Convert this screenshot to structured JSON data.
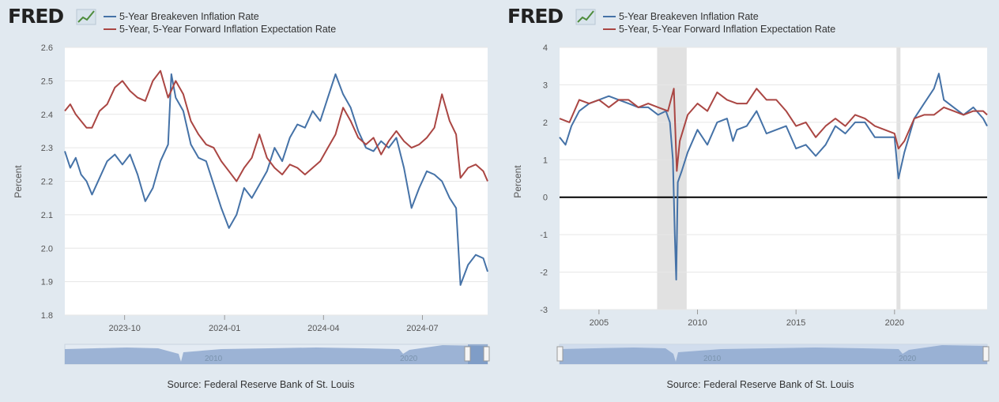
{
  "brand": {
    "logo": "FRED",
    "logo_icon": "fred-chart-icon"
  },
  "colors": {
    "blue": "#4572a7",
    "red": "#aa4643",
    "background": "#e1e9f0",
    "recession": "#e1e1e1",
    "navigator": "#8fa9cf"
  },
  "charts": [
    {
      "legend": [
        "5-Year Breakeven Inflation Rate",
        "5-Year, 5-Year Forward Inflation Expectation Rate"
      ],
      "ylabel": "Percent",
      "yticks": [
        "2.6",
        "2.5",
        "2.4",
        "2.3",
        "2.2",
        "2.1",
        "2.0",
        "1.9",
        "1.8"
      ],
      "xticks": [
        "2023-10",
        "2024-01",
        "2024-04",
        "2024-07"
      ],
      "navigator_labels": [
        "2010",
        "2020"
      ],
      "source": "Source: Federal Reserve Bank of St. Louis"
    },
    {
      "legend": [
        "5-Year Breakeven Inflation Rate",
        "5-Year, 5-Year Forward Inflation Expectation Rate"
      ],
      "ylabel": "Percent",
      "yticks": [
        "4",
        "3",
        "2",
        "1",
        "0",
        "-1",
        "-2",
        "-3"
      ],
      "xticks": [
        "2005",
        "2010",
        "2015",
        "2020"
      ],
      "navigator_labels": [
        "2010",
        "2020"
      ],
      "source": "Source: Federal Reserve Bank of St. Louis"
    }
  ],
  "chart_data": [
    {
      "type": "line",
      "x_type": "date",
      "xlim": [
        "2023-08-07",
        "2024-08-30"
      ],
      "ylim": [
        1.8,
        2.6
      ],
      "grid": true,
      "legend_position": "top-left",
      "series": [
        {
          "name": "5-Year Breakeven Inflation Rate",
          "color": "#4572a7",
          "points": [
            [
              "2023-08-07",
              2.29
            ],
            [
              "2023-08-12",
              2.24
            ],
            [
              "2023-08-17",
              2.27
            ],
            [
              "2023-08-22",
              2.22
            ],
            [
              "2023-08-27",
              2.2
            ],
            [
              "2023-09-01",
              2.16
            ],
            [
              "2023-09-08",
              2.21
            ],
            [
              "2023-09-15",
              2.26
            ],
            [
              "2023-09-22",
              2.28
            ],
            [
              "2023-09-29",
              2.25
            ],
            [
              "2023-10-06",
              2.28
            ],
            [
              "2023-10-13",
              2.22
            ],
            [
              "2023-10-20",
              2.14
            ],
            [
              "2023-10-27",
              2.18
            ],
            [
              "2023-11-03",
              2.26
            ],
            [
              "2023-11-10",
              2.31
            ],
            [
              "2023-11-13",
              2.52
            ],
            [
              "2023-11-17",
              2.45
            ],
            [
              "2023-11-24",
              2.41
            ],
            [
              "2023-12-01",
              2.31
            ],
            [
              "2023-12-08",
              2.27
            ],
            [
              "2023-12-15",
              2.26
            ],
            [
              "2023-12-22",
              2.19
            ],
            [
              "2023-12-29",
              2.12
            ],
            [
              "2024-01-05",
              2.06
            ],
            [
              "2024-01-12",
              2.1
            ],
            [
              "2024-01-19",
              2.18
            ],
            [
              "2024-01-26",
              2.15
            ],
            [
              "2024-02-02",
              2.19
            ],
            [
              "2024-02-09",
              2.23
            ],
            [
              "2024-02-16",
              2.3
            ],
            [
              "2024-02-23",
              2.26
            ],
            [
              "2024-03-01",
              2.33
            ],
            [
              "2024-03-08",
              2.37
            ],
            [
              "2024-03-15",
              2.36
            ],
            [
              "2024-03-22",
              2.41
            ],
            [
              "2024-03-29",
              2.38
            ],
            [
              "2024-04-05",
              2.45
            ],
            [
              "2024-04-12",
              2.52
            ],
            [
              "2024-04-19",
              2.46
            ],
            [
              "2024-04-26",
              2.42
            ],
            [
              "2024-05-03",
              2.35
            ],
            [
              "2024-05-10",
              2.3
            ],
            [
              "2024-05-17",
              2.29
            ],
            [
              "2024-05-24",
              2.32
            ],
            [
              "2024-05-31",
              2.3
            ],
            [
              "2024-06-07",
              2.33
            ],
            [
              "2024-06-14",
              2.24
            ],
            [
              "2024-06-21",
              2.12
            ],
            [
              "2024-06-28",
              2.18
            ],
            [
              "2024-07-05",
              2.23
            ],
            [
              "2024-07-12",
              2.22
            ],
            [
              "2024-07-19",
              2.2
            ],
            [
              "2024-07-26",
              2.15
            ],
            [
              "2024-08-01",
              2.12
            ],
            [
              "2024-08-05",
              1.89
            ],
            [
              "2024-08-12",
              1.95
            ],
            [
              "2024-08-19",
              1.98
            ],
            [
              "2024-08-26",
              1.97
            ],
            [
              "2024-08-30",
              1.93
            ]
          ]
        },
        {
          "name": "5-Year, 5-Year Forward Inflation Expectation Rate",
          "color": "#aa4643",
          "points": [
            [
              "2023-08-07",
              2.41
            ],
            [
              "2023-08-12",
              2.43
            ],
            [
              "2023-08-17",
              2.4
            ],
            [
              "2023-08-22",
              2.38
            ],
            [
              "2023-08-27",
              2.36
            ],
            [
              "2023-09-01",
              2.36
            ],
            [
              "2023-09-08",
              2.41
            ],
            [
              "2023-09-15",
              2.43
            ],
            [
              "2023-09-22",
              2.48
            ],
            [
              "2023-09-29",
              2.5
            ],
            [
              "2023-10-06",
              2.47
            ],
            [
              "2023-10-13",
              2.45
            ],
            [
              "2023-10-20",
              2.44
            ],
            [
              "2023-10-27",
              2.5
            ],
            [
              "2023-11-03",
              2.53
            ],
            [
              "2023-11-10",
              2.45
            ],
            [
              "2023-11-17",
              2.5
            ],
            [
              "2023-11-24",
              2.46
            ],
            [
              "2023-12-01",
              2.38
            ],
            [
              "2023-12-08",
              2.34
            ],
            [
              "2023-12-15",
              2.31
            ],
            [
              "2023-12-22",
              2.3
            ],
            [
              "2023-12-29",
              2.26
            ],
            [
              "2024-01-05",
              2.23
            ],
            [
              "2024-01-12",
              2.2
            ],
            [
              "2024-01-19",
              2.24
            ],
            [
              "2024-01-26",
              2.27
            ],
            [
              "2024-02-02",
              2.34
            ],
            [
              "2024-02-09",
              2.27
            ],
            [
              "2024-02-16",
              2.24
            ],
            [
              "2024-02-23",
              2.22
            ],
            [
              "2024-03-01",
              2.25
            ],
            [
              "2024-03-08",
              2.24
            ],
            [
              "2024-03-15",
              2.22
            ],
            [
              "2024-03-22",
              2.24
            ],
            [
              "2024-03-29",
              2.26
            ],
            [
              "2024-04-05",
              2.3
            ],
            [
              "2024-04-12",
              2.34
            ],
            [
              "2024-04-19",
              2.42
            ],
            [
              "2024-04-26",
              2.38
            ],
            [
              "2024-05-03",
              2.33
            ],
            [
              "2024-05-10",
              2.31
            ],
            [
              "2024-05-17",
              2.33
            ],
            [
              "2024-05-24",
              2.28
            ],
            [
              "2024-05-31",
              2.32
            ],
            [
              "2024-06-07",
              2.35
            ],
            [
              "2024-06-14",
              2.32
            ],
            [
              "2024-06-21",
              2.3
            ],
            [
              "2024-06-28",
              2.31
            ],
            [
              "2024-07-05",
              2.33
            ],
            [
              "2024-07-12",
              2.36
            ],
            [
              "2024-07-19",
              2.46
            ],
            [
              "2024-07-26",
              2.38
            ],
            [
              "2024-08-01",
              2.34
            ],
            [
              "2024-08-05",
              2.21
            ],
            [
              "2024-08-12",
              2.24
            ],
            [
              "2024-08-19",
              2.25
            ],
            [
              "2024-08-26",
              2.23
            ],
            [
              "2024-08-30",
              2.2
            ]
          ]
        }
      ]
    },
    {
      "type": "line",
      "x_type": "year",
      "xlim": [
        2003.0,
        2024.7
      ],
      "ylim": [
        -3,
        4
      ],
      "grid": true,
      "legend_position": "top-left",
      "zero_line": true,
      "recession_bands": [
        [
          2007.95,
          2009.45
        ],
        [
          2020.1,
          2020.3
        ]
      ],
      "series": [
        {
          "name": "5-Year Breakeven Inflation Rate",
          "color": "#4572a7",
          "points": [
            [
              2003.0,
              1.6
            ],
            [
              2003.3,
              1.4
            ],
            [
              2003.6,
              1.9
            ],
            [
              2004.0,
              2.3
            ],
            [
              2004.5,
              2.5
            ],
            [
              2005.0,
              2.6
            ],
            [
              2005.5,
              2.7
            ],
            [
              2006.0,
              2.6
            ],
            [
              2006.5,
              2.5
            ],
            [
              2007.0,
              2.4
            ],
            [
              2007.5,
              2.4
            ],
            [
              2008.0,
              2.2
            ],
            [
              2008.4,
              2.3
            ],
            [
              2008.6,
              2.0
            ],
            [
              2008.75,
              1.0
            ],
            [
              2008.85,
              -1.0
            ],
            [
              2008.92,
              -2.2
            ],
            [
              2009.0,
              0.4
            ],
            [
              2009.2,
              0.7
            ],
            [
              2009.5,
              1.2
            ],
            [
              2010.0,
              1.8
            ],
            [
              2010.5,
              1.4
            ],
            [
              2011.0,
              2.0
            ],
            [
              2011.5,
              2.1
            ],
            [
              2011.8,
              1.5
            ],
            [
              2012.0,
              1.8
            ],
            [
              2012.5,
              1.9
            ],
            [
              2013.0,
              2.3
            ],
            [
              2013.5,
              1.7
            ],
            [
              2014.0,
              1.8
            ],
            [
              2014.5,
              1.9
            ],
            [
              2015.0,
              1.3
            ],
            [
              2015.5,
              1.4
            ],
            [
              2016.0,
              1.1
            ],
            [
              2016.5,
              1.4
            ],
            [
              2017.0,
              1.9
            ],
            [
              2017.5,
              1.7
            ],
            [
              2018.0,
              2.0
            ],
            [
              2018.5,
              2.0
            ],
            [
              2019.0,
              1.6
            ],
            [
              2019.5,
              1.6
            ],
            [
              2020.0,
              1.6
            ],
            [
              2020.2,
              0.5
            ],
            [
              2020.5,
              1.2
            ],
            [
              2021.0,
              2.1
            ],
            [
              2021.5,
              2.5
            ],
            [
              2022.0,
              2.9
            ],
            [
              2022.25,
              3.3
            ],
            [
              2022.5,
              2.6
            ],
            [
              2023.0,
              2.4
            ],
            [
              2023.5,
              2.2
            ],
            [
              2024.0,
              2.4
            ],
            [
              2024.5,
              2.1
            ],
            [
              2024.7,
              1.9
            ]
          ]
        },
        {
          "name": "5-Year, 5-Year Forward Inflation Expectation Rate",
          "color": "#aa4643",
          "points": [
            [
              2003.0,
              2.1
            ],
            [
              2003.5,
              2.0
            ],
            [
              2004.0,
              2.6
            ],
            [
              2004.5,
              2.5
            ],
            [
              2005.0,
              2.6
            ],
            [
              2005.5,
              2.4
            ],
            [
              2006.0,
              2.6
            ],
            [
              2006.5,
              2.6
            ],
            [
              2007.0,
              2.4
            ],
            [
              2007.5,
              2.5
            ],
            [
              2008.0,
              2.4
            ],
            [
              2008.5,
              2.3
            ],
            [
              2008.8,
              2.9
            ],
            [
              2008.95,
              0.7
            ],
            [
              2009.1,
              1.5
            ],
            [
              2009.5,
              2.2
            ],
            [
              2010.0,
              2.5
            ],
            [
              2010.5,
              2.3
            ],
            [
              2011.0,
              2.8
            ],
            [
              2011.5,
              2.6
            ],
            [
              2012.0,
              2.5
            ],
            [
              2012.5,
              2.5
            ],
            [
              2013.0,
              2.9
            ],
            [
              2013.5,
              2.6
            ],
            [
              2014.0,
              2.6
            ],
            [
              2014.5,
              2.3
            ],
            [
              2015.0,
              1.9
            ],
            [
              2015.5,
              2.0
            ],
            [
              2016.0,
              1.6
            ],
            [
              2016.5,
              1.9
            ],
            [
              2017.0,
              2.1
            ],
            [
              2017.5,
              1.9
            ],
            [
              2018.0,
              2.2
            ],
            [
              2018.5,
              2.1
            ],
            [
              2019.0,
              1.9
            ],
            [
              2019.5,
              1.8
            ],
            [
              2020.0,
              1.7
            ],
            [
              2020.2,
              1.3
            ],
            [
              2020.5,
              1.5
            ],
            [
              2021.0,
              2.1
            ],
            [
              2021.5,
              2.2
            ],
            [
              2022.0,
              2.2
            ],
            [
              2022.5,
              2.4
            ],
            [
              2023.0,
              2.3
            ],
            [
              2023.5,
              2.2
            ],
            [
              2024.0,
              2.3
            ],
            [
              2024.5,
              2.3
            ],
            [
              2024.7,
              2.2
            ]
          ]
        }
      ]
    }
  ]
}
